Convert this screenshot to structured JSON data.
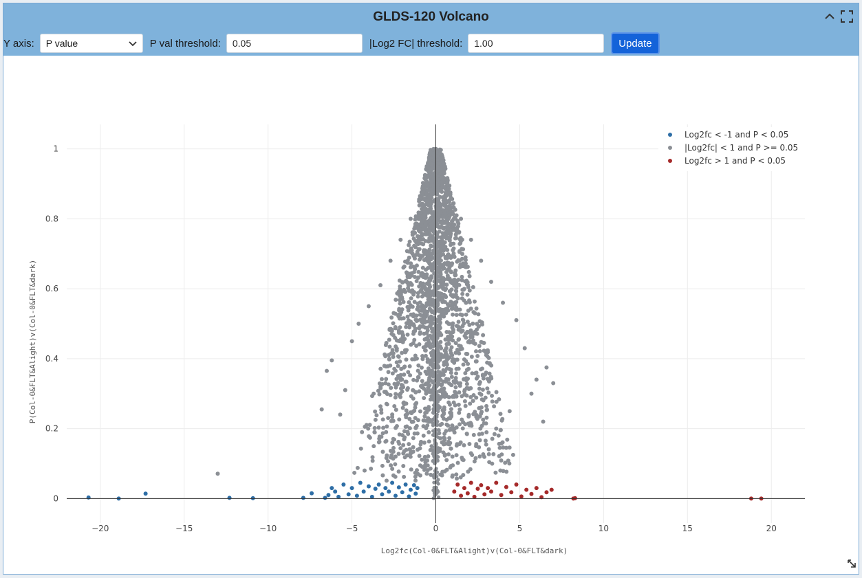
{
  "panel": {
    "title": "GLDS-120 Volcano"
  },
  "toolbar": {
    "yaxis_label": "Y axis:",
    "yaxis_value": "P value",
    "pval_label": "P val threshold:",
    "pval_value": "0.05",
    "fc_label": "|Log2 FC| threshold:",
    "fc_value": "1.00",
    "update_label": "Update"
  },
  "colors": {
    "down": "#2e6ea6",
    "ns": "#8b8f95",
    "up": "#a52a2a"
  },
  "chart_data": {
    "type": "scatter",
    "title": "GLDS-120 Volcano",
    "xlabel": "Log2fc(Col-0&FLT&Alight)v(Col-0&FLT&dark)",
    "ylabel": "P(Col-0&FLT&Alight)v(Col-0&FLT&dark)",
    "xlim": [
      -22,
      22
    ],
    "ylim": [
      -0.07,
      1.07
    ],
    "xticks": [
      -20,
      -15,
      -10,
      -5,
      0,
      5,
      10,
      15,
      20
    ],
    "xtick_labels": [
      "−20",
      "−15",
      "−10",
      "−5",
      "0",
      "5",
      "10",
      "15",
      "20"
    ],
    "yticks": [
      0,
      0.2,
      0.4,
      0.6,
      0.8,
      1
    ],
    "ytick_labels": [
      "0",
      "0.2",
      "0.4",
      "0.6",
      "0.8",
      "1"
    ],
    "legend": [
      "Log2fc < -1 and P < 0.05",
      "|Log2fc| < 1 and P >= 0.05",
      "Log2fc > 1 and P < 0.05"
    ],
    "series": [
      {
        "name": "Log2fc < -1 and P < 0.05",
        "points": [
          [
            -20.7,
            0.003
          ],
          [
            -18.9,
            0.0
          ],
          [
            -17.3,
            0.014
          ],
          [
            -12.3,
            0.002
          ],
          [
            -10.9,
            0.001
          ],
          [
            -7.9,
            0.002
          ],
          [
            -7.4,
            0.015
          ],
          [
            -6.6,
            0.002
          ],
          [
            -6.4,
            0.01
          ],
          [
            -6.2,
            0.03
          ],
          [
            -6.0,
            0.02
          ],
          [
            -5.8,
            0.005
          ],
          [
            -5.5,
            0.04
          ],
          [
            -5.2,
            0.012
          ],
          [
            -5.0,
            0.03
          ],
          [
            -4.7,
            0.008
          ],
          [
            -4.5,
            0.045
          ],
          [
            -4.3,
            0.02
          ],
          [
            -4.0,
            0.035
          ],
          [
            -3.8,
            0.005
          ],
          [
            -3.6,
            0.028
          ],
          [
            -3.4,
            0.04
          ],
          [
            -3.2,
            0.012
          ],
          [
            -3.0,
            0.03
          ],
          [
            -2.8,
            0.02
          ],
          [
            -2.6,
            0.045
          ],
          [
            -2.4,
            0.008
          ],
          [
            -2.2,
            0.032
          ],
          [
            -2.0,
            0.018
          ],
          [
            -1.8,
            0.04
          ],
          [
            -1.6,
            0.006
          ],
          [
            -1.5,
            0.025
          ],
          [
            -1.3,
            0.038
          ],
          [
            -1.2,
            0.014
          ],
          [
            -1.1,
            0.03
          ]
        ]
      },
      {
        "name": "|Log2fc| < 1 and P >= 0.05",
        "points": [
          [
            -13.0,
            0.071
          ],
          [
            -6.8,
            0.255
          ],
          [
            -6.5,
            0.365
          ],
          [
            -6.2,
            0.395
          ],
          [
            -5.7,
            0.24
          ],
          [
            -5.4,
            0.31
          ],
          [
            -5.0,
            0.45
          ],
          [
            -4.6,
            0.5
          ],
          [
            -4.4,
            0.19
          ],
          [
            -4.0,
            0.55
          ],
          [
            -3.7,
            0.15
          ],
          [
            -3.3,
            0.61
          ],
          [
            -3.0,
            0.33
          ],
          [
            -2.7,
            0.68
          ],
          [
            -2.4,
            0.12
          ],
          [
            -2.1,
            0.74
          ],
          [
            -1.8,
            0.42
          ],
          [
            -1.5,
            0.8
          ],
          [
            -1.2,
            0.27
          ],
          [
            -0.9,
            0.86
          ],
          [
            -0.6,
            0.55
          ],
          [
            -0.3,
            0.94
          ],
          [
            0.0,
            1.0
          ],
          [
            0.3,
            0.93
          ],
          [
            0.6,
            0.6
          ],
          [
            0.9,
            0.86
          ],
          [
            1.2,
            0.3
          ],
          [
            1.5,
            0.8
          ],
          [
            1.8,
            0.46
          ],
          [
            2.1,
            0.74
          ],
          [
            2.4,
            0.15
          ],
          [
            2.7,
            0.68
          ],
          [
            3.0,
            0.36
          ],
          [
            3.3,
            0.62
          ],
          [
            3.6,
            0.2
          ],
          [
            4.0,
            0.56
          ],
          [
            4.4,
            0.25
          ],
          [
            4.8,
            0.51
          ],
          [
            5.3,
            0.43
          ],
          [
            5.7,
            0.3
          ],
          [
            6.0,
            0.34
          ],
          [
            6.4,
            0.22
          ],
          [
            6.6,
            0.375
          ],
          [
            7.0,
            0.33
          ]
        ]
      },
      {
        "name": "Log2fc > 1 and P < 0.05",
        "points": [
          [
            1.1,
            0.02
          ],
          [
            1.3,
            0.04
          ],
          [
            1.5,
            0.008
          ],
          [
            1.7,
            0.03
          ],
          [
            1.9,
            0.015
          ],
          [
            2.1,
            0.045
          ],
          [
            2.3,
            0.005
          ],
          [
            2.5,
            0.028
          ],
          [
            2.7,
            0.038
          ],
          [
            2.9,
            0.012
          ],
          [
            3.1,
            0.03
          ],
          [
            3.3,
            0.02
          ],
          [
            3.6,
            0.045
          ],
          [
            3.9,
            0.01
          ],
          [
            4.2,
            0.033
          ],
          [
            4.5,
            0.018
          ],
          [
            4.8,
            0.04
          ],
          [
            5.1,
            0.006
          ],
          [
            5.4,
            0.025
          ],
          [
            5.7,
            0.013
          ],
          [
            6.0,
            0.03
          ],
          [
            6.3,
            0.004
          ],
          [
            6.6,
            0.018
          ],
          [
            6.9,
            0.025
          ],
          [
            8.2,
            0.0
          ],
          [
            8.3,
            0.001
          ],
          [
            18.8,
            0.0
          ],
          [
            19.4,
            0.0
          ]
        ]
      }
    ]
  }
}
